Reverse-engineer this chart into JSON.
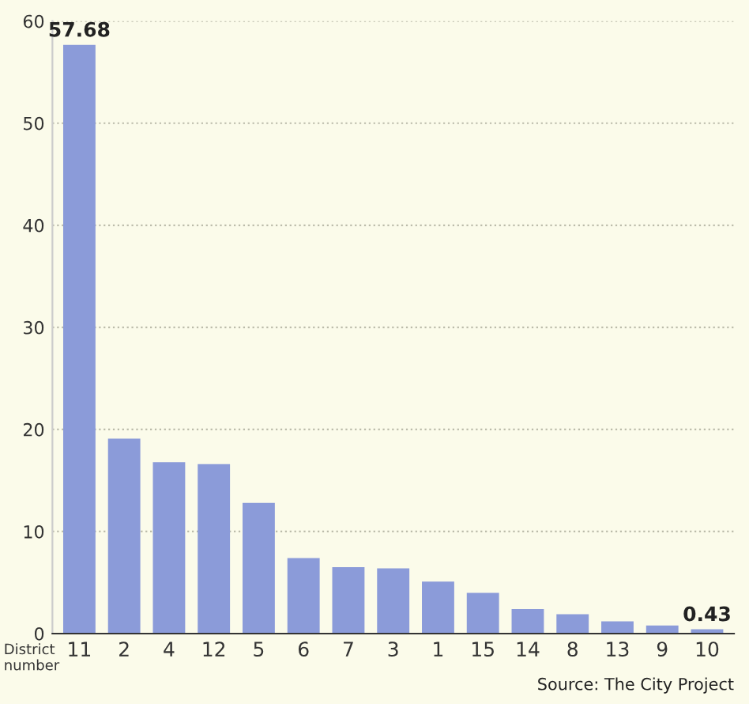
{
  "chart_data": {
    "type": "bar",
    "xlabel": "District number",
    "categories": [
      "11",
      "2",
      "4",
      "12",
      "5",
      "6",
      "7",
      "3",
      "1",
      "15",
      "14",
      "8",
      "13",
      "9",
      "10"
    ],
    "values": [
      57.68,
      19.1,
      16.8,
      16.6,
      12.8,
      7.4,
      6.5,
      6.4,
      5.1,
      4.0,
      2.4,
      1.9,
      1.2,
      0.8,
      0.43
    ],
    "value_labels": [
      "57.68",
      null,
      null,
      null,
      null,
      null,
      null,
      null,
      null,
      null,
      null,
      null,
      null,
      null,
      "0.43"
    ],
    "color": "#8b9bd9",
    "ylim": [
      0,
      60
    ],
    "yticks": [
      0,
      10,
      20,
      30,
      40,
      50,
      60
    ],
    "grid": "y",
    "annotations": [
      "Source: The City Project"
    ]
  }
}
